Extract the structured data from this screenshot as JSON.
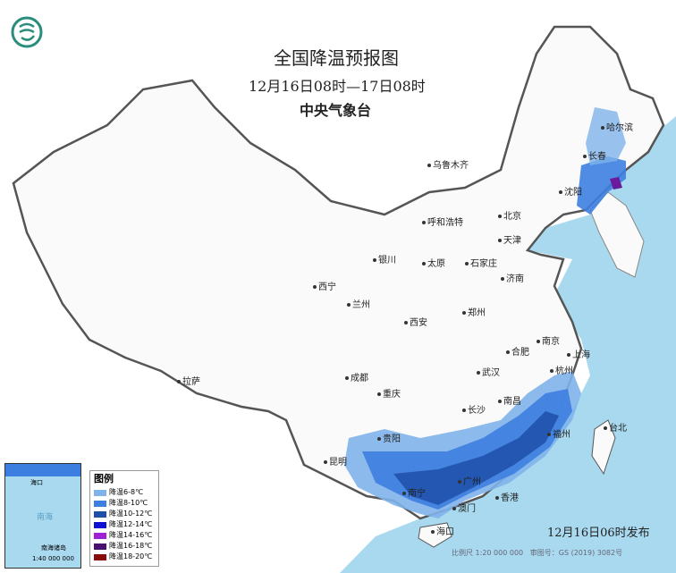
{
  "title": "全国降温预报图",
  "subtitle": "12月16日08时—17日08时",
  "issuer": "中央气象台",
  "published": "12月16日06时发布",
  "scale": "比例尺 1:20 000 000",
  "map_number": "审图号：GS (2019) 3082号",
  "inset": {
    "label": "南海",
    "islands": "南海诸岛",
    "scale": "1:40 000 000",
    "haikou": "海口"
  },
  "legend": {
    "title": "图例",
    "items": [
      {
        "label": "降温6-8℃",
        "color": "#7fb3ea"
      },
      {
        "label": "降温8-10℃",
        "color": "#3d7fe0"
      },
      {
        "label": "降温10-12℃",
        "color": "#1f4fa8"
      },
      {
        "label": "降温12-14℃",
        "color": "#1010d0"
      },
      {
        "label": "降温14-16℃",
        "color": "#a020d8"
      },
      {
        "label": "降温16-18℃",
        "color": "#4a1070"
      },
      {
        "label": "降温18-20℃",
        "color": "#8b0a0a"
      }
    ]
  },
  "cities": [
    "乌鲁木齐",
    "哈尔滨",
    "长春",
    "沈阳",
    "北京",
    "天津",
    "呼和浩特",
    "石家庄",
    "太原",
    "银川",
    "济南",
    "西宁",
    "兰州",
    "郑州",
    "西安",
    "合肥",
    "南京",
    "上海",
    "武汉",
    "杭州",
    "成都",
    "重庆",
    "长沙",
    "南昌",
    "拉萨",
    "贵阳",
    "福州",
    "台北",
    "昆明",
    "南宁",
    "广州",
    "香港",
    "澳门",
    "海口"
  ],
  "colors": {
    "sea": "#a9d9ef",
    "land": "#ffffff",
    "border": "#555555"
  }
}
